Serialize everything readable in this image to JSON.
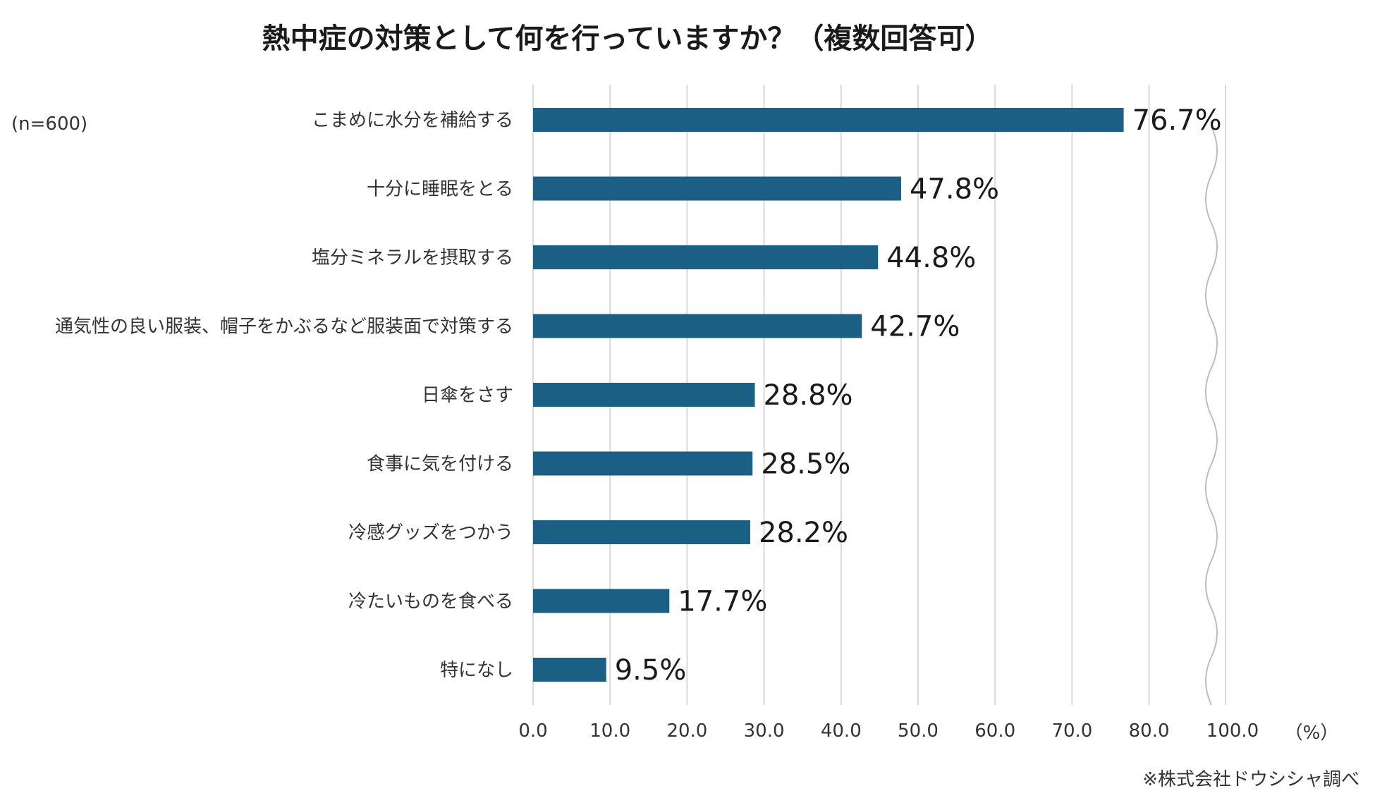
{
  "chart_data": {
    "type": "bar",
    "orientation": "horizontal",
    "title": "熱中症の対策として何を行っていますか？（複数回答可）",
    "sample_note": "(n=600)",
    "unit_label": "（%）",
    "source_note": "※株式会社ドウシシャ調べ",
    "categories": [
      "こまめに水分を補給する",
      "十分に睡眠をとる",
      "塩分ミネラルを摂取する",
      "通気性の良い服装、帽子をかぶるなど服装面で対策する",
      "日傘をさす",
      "食事に気を付ける",
      "冷感グッズをつかう",
      "冷たいものを食べる",
      "特になし"
    ],
    "values": [
      76.7,
      47.8,
      44.8,
      42.7,
      28.8,
      28.5,
      28.2,
      17.7,
      9.5
    ],
    "value_labels": [
      "76.7%",
      "47.8%",
      "44.8%",
      "42.7%",
      "28.8%",
      "28.5%",
      "28.2%",
      "17.7%",
      "9.5%"
    ],
    "x_ticks": [
      0,
      10,
      20,
      30,
      40,
      50,
      60,
      70,
      80,
      100
    ],
    "x_tick_labels": [
      "0.0",
      "10.0",
      "20.0",
      "30.0",
      "40.0",
      "50.0",
      "60.0",
      "70.0",
      "80.0",
      "100.0"
    ],
    "axis_break": "between 80.0 and 100.0",
    "xlim": [
      0,
      100
    ],
    "grid": true,
    "bar_color": "#1b5f84",
    "grid_color": "#d9d9d9"
  }
}
